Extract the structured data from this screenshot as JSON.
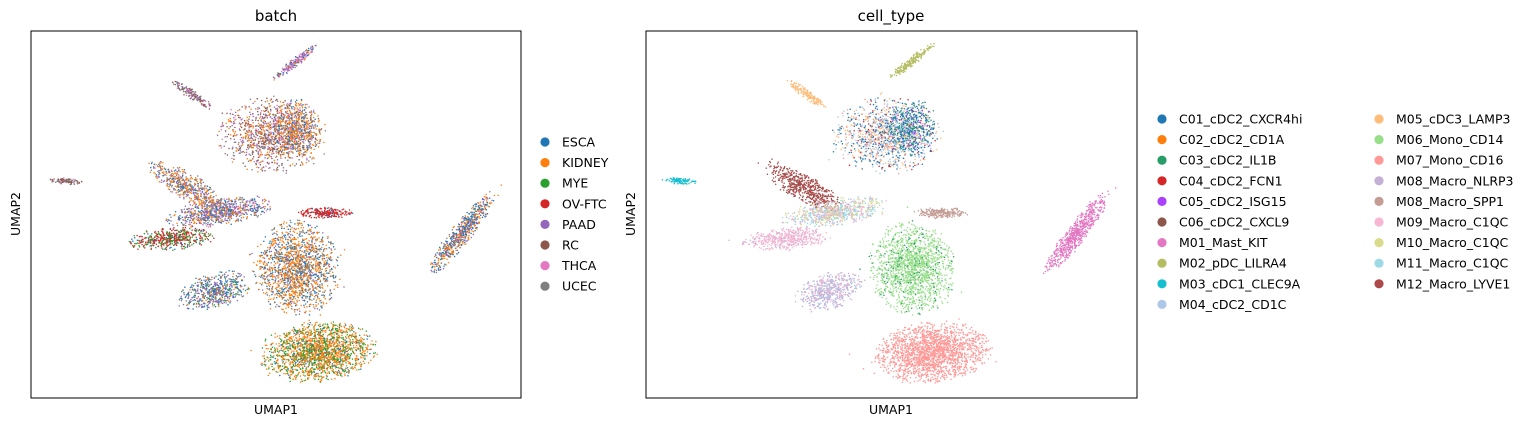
{
  "chart_data": [
    {
      "type": "scatter",
      "title": "batch",
      "xlabel": "UMAP1",
      "ylabel": "UMAP2",
      "grid": false,
      "legend_position": "right",
      "series": [
        {
          "name": "ESCA",
          "color": "#1f77b4"
        },
        {
          "name": "KIDNEY",
          "color": "#ff7f0e"
        },
        {
          "name": "MYE",
          "color": "#2ca02c"
        },
        {
          "name": "OV-FTC",
          "color": "#d62728"
        },
        {
          "name": "PAAD",
          "color": "#9467bd"
        },
        {
          "name": "RC",
          "color": "#8c564b"
        },
        {
          "name": "THCA",
          "color": "#e377c2"
        },
        {
          "name": "UCEC",
          "color": "#7f7f7f"
        }
      ]
    },
    {
      "type": "scatter",
      "title": "cell_type",
      "xlabel": "UMAP1",
      "ylabel": "UMAP2",
      "grid": false,
      "legend_position": "right",
      "series": [
        {
          "name": "C01_cDC2_CXCR4hi",
          "color": "#1f77b4"
        },
        {
          "name": "C02_cDC2_CD1A",
          "color": "#ff7f0e"
        },
        {
          "name": "C03_cDC2_IL1B",
          "color": "#279e68"
        },
        {
          "name": "C04_cDC2_FCN1",
          "color": "#d62728"
        },
        {
          "name": "C05_cDC2_ISG15",
          "color": "#aa40fc"
        },
        {
          "name": "C06_cDC2_CXCL9",
          "color": "#8c564b"
        },
        {
          "name": "M01_Mast_KIT",
          "color": "#e377c2"
        },
        {
          "name": "M02_pDC_LILRA4",
          "color": "#b5bd61"
        },
        {
          "name": "M03_cDC1_CLEC9A",
          "color": "#17becf"
        },
        {
          "name": "M04_cDC2_CD1C",
          "color": "#aec7e8"
        },
        {
          "name": "M05_cDC3_LAMP3",
          "color": "#ffbb78"
        },
        {
          "name": "M06_Mono_CD14",
          "color": "#98df8a"
        },
        {
          "name": "M07_Mono_CD16",
          "color": "#ff9896"
        },
        {
          "name": "M08_Macro_NLRP3",
          "color": "#c5b0d5"
        },
        {
          "name": "M08_Macro_SPP1",
          "color": "#c49c94"
        },
        {
          "name": "M09_Macro_C1QC",
          "color": "#f7b6d2"
        },
        {
          "name": "M10_Macro_C1QC",
          "color": "#dbdb8d"
        },
        {
          "name": "M11_Macro_C1QC",
          "color": "#9edae5"
        },
        {
          "name": "M12_Macro_LYVE1",
          "color": "#ad494a"
        }
      ]
    }
  ]
}
